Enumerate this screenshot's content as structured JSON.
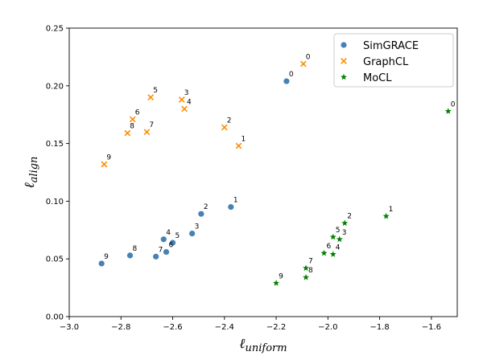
{
  "chart_data": {
    "type": "scatter",
    "xlabel": "uniform",
    "ylabel": "align",
    "xlabel_prefix": "ℓ",
    "ylabel_prefix": "ℓ",
    "xlim": [
      -3.0,
      -1.5
    ],
    "ylim": [
      0.0,
      0.25
    ],
    "xticks": [
      -3.0,
      -2.8,
      -2.6,
      -2.4,
      -2.2,
      -2.0,
      -1.8,
      -1.6
    ],
    "xtick_labels": [
      "−3.0",
      "−2.8",
      "−2.6",
      "−2.4",
      "−2.2",
      "−2.0",
      "−1.8",
      "−1.6"
    ],
    "yticks": [
      0.0,
      0.05,
      0.1,
      0.15,
      0.2,
      0.25
    ],
    "ytick_labels": [
      "0.00",
      "0.05",
      "0.10",
      "0.15",
      "0.20",
      "0.25"
    ],
    "grid": false,
    "legend_position": "top-right",
    "series": [
      {
        "name": "SimGRACE",
        "marker": "circle",
        "color": "#4682b4",
        "points": [
          {
            "label": "0",
            "x": -2.16,
            "y": 0.204
          },
          {
            "label": "1",
            "x": -2.375,
            "y": 0.095
          },
          {
            "label": "2",
            "x": -2.49,
            "y": 0.089
          },
          {
            "label": "3",
            "x": -2.525,
            "y": 0.072
          },
          {
            "label": "4",
            "x": -2.635,
            "y": 0.067
          },
          {
            "label": "5",
            "x": -2.6,
            "y": 0.064
          },
          {
            "label": "6",
            "x": -2.625,
            "y": 0.056
          },
          {
            "label": "7",
            "x": -2.665,
            "y": 0.052
          },
          {
            "label": "8",
            "x": -2.765,
            "y": 0.053
          },
          {
            "label": "9",
            "x": -2.875,
            "y": 0.046
          }
        ]
      },
      {
        "name": "GraphCL",
        "marker": "x",
        "color": "#ff8c00",
        "points": [
          {
            "label": "0",
            "x": -2.095,
            "y": 0.219
          },
          {
            "label": "1",
            "x": -2.345,
            "y": 0.148
          },
          {
            "label": "2",
            "x": -2.4,
            "y": 0.164
          },
          {
            "label": "3",
            "x": -2.565,
            "y": 0.188
          },
          {
            "label": "4",
            "x": -2.555,
            "y": 0.18
          },
          {
            "label": "5",
            "x": -2.685,
            "y": 0.19
          },
          {
            "label": "6",
            "x": -2.755,
            "y": 0.171
          },
          {
            "label": "7",
            "x": -2.7,
            "y": 0.16
          },
          {
            "label": "8",
            "x": -2.775,
            "y": 0.159
          },
          {
            "label": "9",
            "x": -2.865,
            "y": 0.132
          }
        ]
      },
      {
        "name": "MoCL",
        "marker": "star",
        "color": "#008000",
        "points": [
          {
            "label": "0",
            "x": -1.535,
            "y": 0.178
          },
          {
            "label": "1",
            "x": -1.775,
            "y": 0.087
          },
          {
            "label": "2",
            "x": -1.935,
            "y": 0.081
          },
          {
            "label": "3",
            "x": -1.955,
            "y": 0.067
          },
          {
            "label": "4",
            "x": -1.98,
            "y": 0.054
          },
          {
            "label": "5",
            "x": -1.98,
            "y": 0.069
          },
          {
            "label": "6",
            "x": -2.015,
            "y": 0.055
          },
          {
            "label": "7",
            "x": -2.085,
            "y": 0.042
          },
          {
            "label": "8",
            "x": -2.085,
            "y": 0.034
          },
          {
            "label": "9",
            "x": -2.2,
            "y": 0.029
          }
        ]
      }
    ]
  }
}
